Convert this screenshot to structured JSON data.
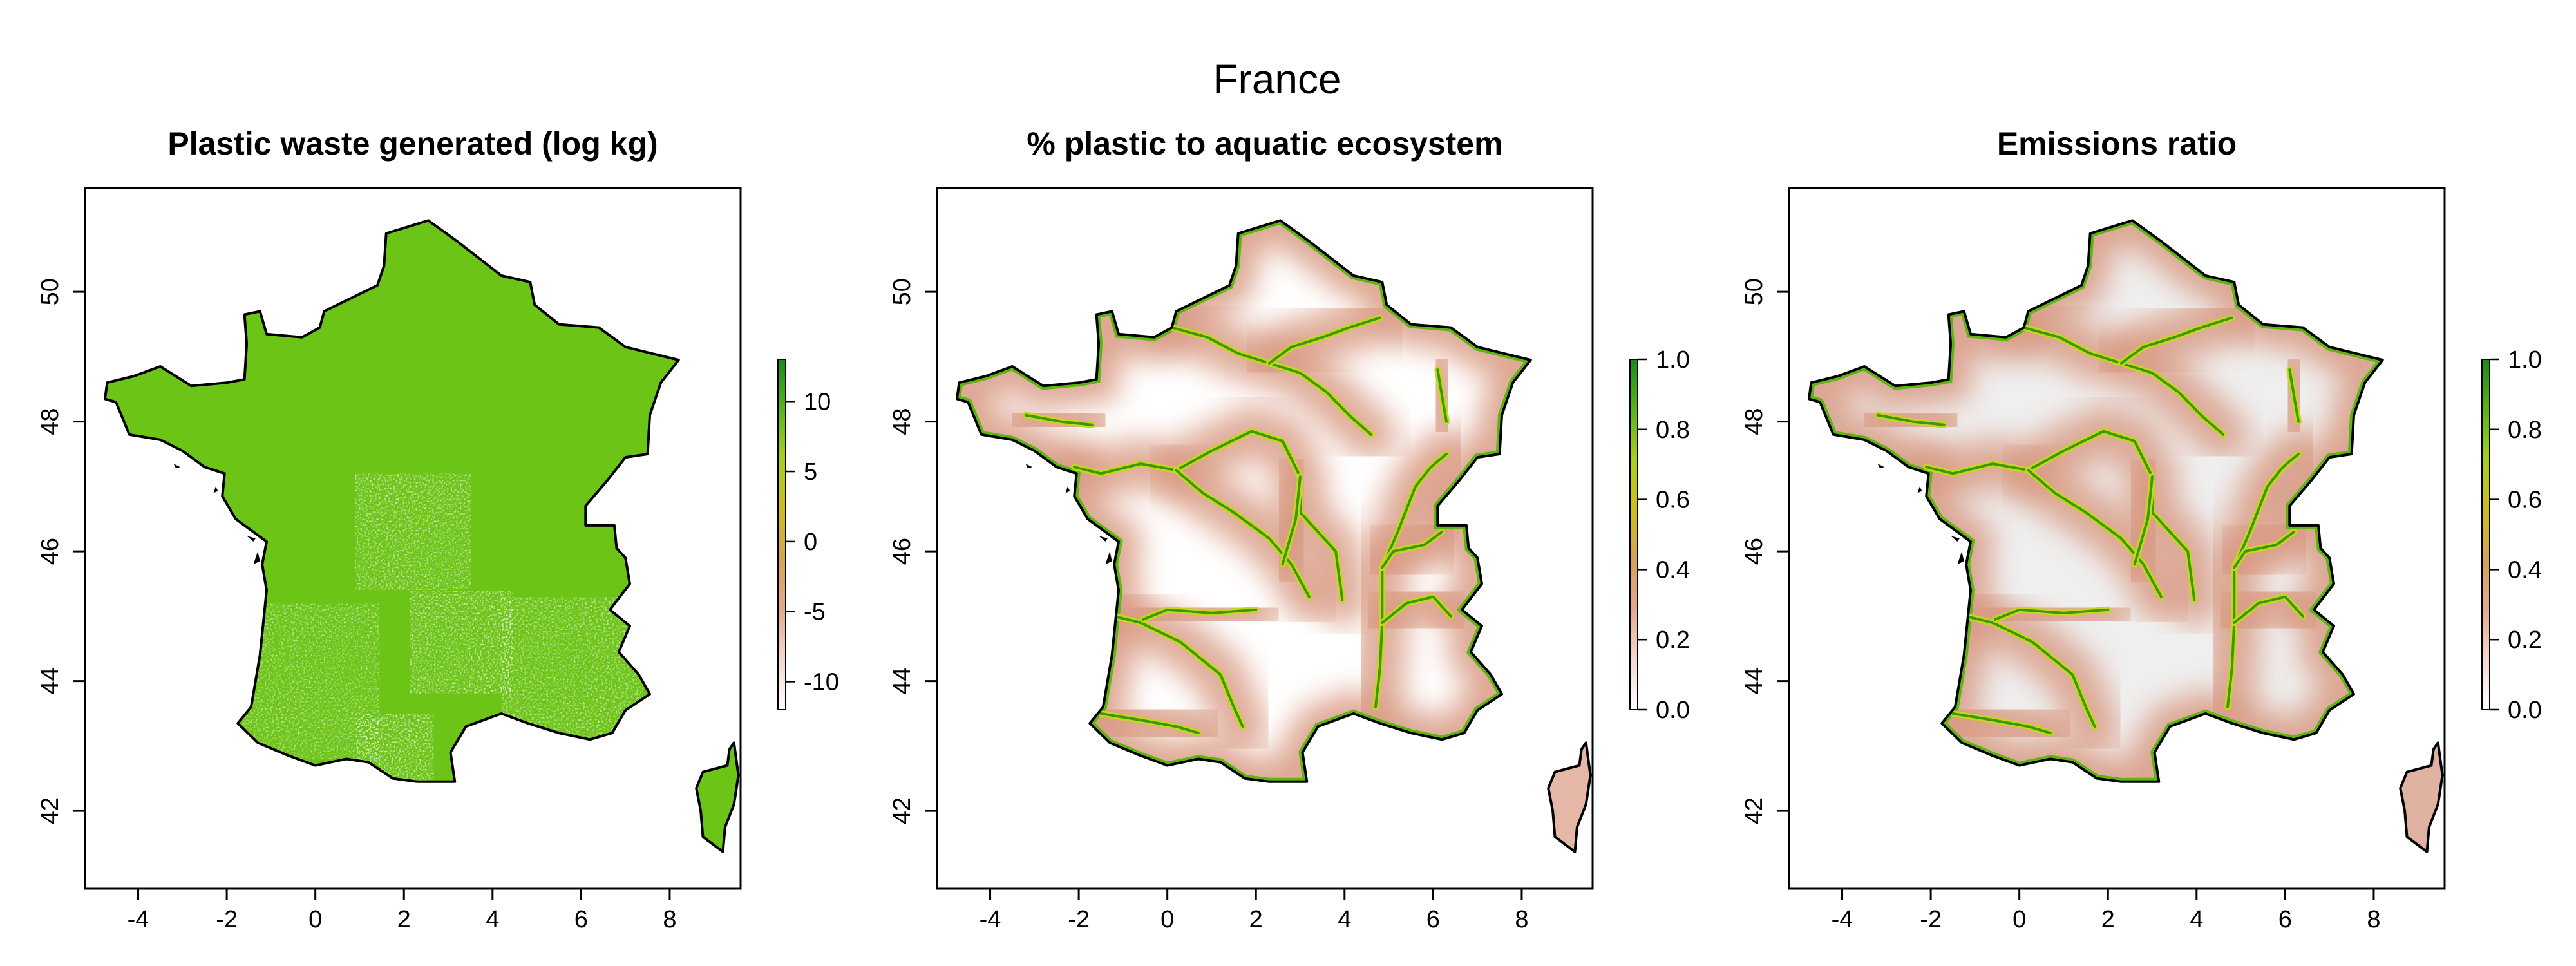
{
  "figure": {
    "title": "France"
  },
  "panels": [
    {
      "id": "waste",
      "title": "Plastic waste generated (log kg)",
      "fill_mode": "waste",
      "legend": {
        "ticks": [
          "10",
          "5",
          "0",
          "-5",
          "-10"
        ],
        "tick_values": [
          10,
          5,
          0,
          -5,
          -10
        ],
        "range": [
          -12,
          13
        ]
      }
    },
    {
      "id": "aquatic",
      "title": "% plastic to aquatic ecosystem",
      "fill_mode": "aquatic",
      "legend": {
        "ticks": [
          "1.0",
          "0.8",
          "0.6",
          "0.4",
          "0.2",
          "0.0"
        ],
        "tick_values": [
          1.0,
          0.8,
          0.6,
          0.4,
          0.2,
          0.0
        ],
        "range": [
          0,
          1
        ]
      }
    },
    {
      "id": "emissions",
      "title": "Emissions ratio",
      "fill_mode": "emissions",
      "legend": {
        "ticks": [
          "1.0",
          "0.8",
          "0.6",
          "0.4",
          "0.2",
          "0.0"
        ],
        "tick_values": [
          1.0,
          0.8,
          0.6,
          0.4,
          0.2,
          0.0
        ],
        "range": [
          0,
          1
        ]
      }
    }
  ],
  "axes": {
    "x_ticks": [
      "-4",
      "-2",
      "0",
      "2",
      "4",
      "6",
      "8"
    ],
    "x_tick_values": [
      -4,
      -2,
      0,
      2,
      4,
      6,
      8
    ],
    "y_ticks": [
      "42",
      "44",
      "46",
      "48",
      "50"
    ],
    "y_tick_values": [
      42,
      44,
      46,
      48,
      50
    ],
    "xlim": [
      -5.2,
      9.6
    ],
    "ylim": [
      40.8,
      51.6
    ]
  },
  "colors": {
    "land_green": "#6cc417",
    "river_green": "#5db512",
    "river_core": "#3a9a0e",
    "halo": "#d89880",
    "grey_fill": "#efefef",
    "outline": "#000000",
    "scale": [
      "#ffffff",
      "#f3d7d0",
      "#e3a98e",
      "#d5a25a",
      "#cdbd1e",
      "#a9cf1f",
      "#58b41a",
      "#1b8a1a"
    ]
  },
  "map": {
    "mainland": [
      [
        -1.6,
        49.65
      ],
      [
        -1.25,
        49.7
      ],
      [
        -1.1,
        49.35
      ],
      [
        -0.3,
        49.3
      ],
      [
        0.1,
        49.45
      ],
      [
        0.2,
        49.7
      ],
      [
        1.4,
        50.1
      ],
      [
        1.55,
        50.4
      ],
      [
        1.6,
        50.9
      ],
      [
        2.55,
        51.1
      ],
      [
        3.2,
        50.78
      ],
      [
        4.2,
        50.25
      ],
      [
        4.85,
        50.15
      ],
      [
        4.95,
        49.8
      ],
      [
        5.5,
        49.5
      ],
      [
        6.4,
        49.45
      ],
      [
        7.0,
        49.15
      ],
      [
        7.6,
        49.05
      ],
      [
        8.2,
        48.95
      ],
      [
        7.8,
        48.6
      ],
      [
        7.55,
        48.1
      ],
      [
        7.5,
        47.5
      ],
      [
        7.0,
        47.45
      ],
      [
        6.6,
        47.1
      ],
      [
        6.1,
        46.7
      ],
      [
        6.1,
        46.4
      ],
      [
        6.75,
        46.4
      ],
      [
        6.8,
        46.05
      ],
      [
        7.0,
        45.9
      ],
      [
        7.1,
        45.5
      ],
      [
        6.65,
        45.1
      ],
      [
        7.1,
        44.85
      ],
      [
        6.85,
        44.45
      ],
      [
        7.3,
        44.1
      ],
      [
        7.55,
        43.8
      ],
      [
        7.0,
        43.55
      ],
      [
        6.7,
        43.2
      ],
      [
        6.2,
        43.1
      ],
      [
        5.5,
        43.2
      ],
      [
        4.8,
        43.35
      ],
      [
        4.2,
        43.5
      ],
      [
        3.4,
        43.3
      ],
      [
        3.05,
        42.9
      ],
      [
        3.15,
        42.45
      ],
      [
        2.3,
        42.45
      ],
      [
        1.75,
        42.5
      ],
      [
        1.2,
        42.75
      ],
      [
        0.7,
        42.8
      ],
      [
        0.0,
        42.7
      ],
      [
        -0.6,
        42.85
      ],
      [
        -1.3,
        43.05
      ],
      [
        -1.75,
        43.35
      ],
      [
        -1.45,
        43.6
      ],
      [
        -1.25,
        44.4
      ],
      [
        -1.1,
        45.4
      ],
      [
        -1.2,
        45.8
      ],
      [
        -1.1,
        46.15
      ],
      [
        -1.8,
        46.5
      ],
      [
        -2.1,
        46.85
      ],
      [
        -2.05,
        47.2
      ],
      [
        -2.5,
        47.3
      ],
      [
        -3.0,
        47.55
      ],
      [
        -3.5,
        47.72
      ],
      [
        -4.2,
        47.8
      ],
      [
        -4.35,
        48.05
      ],
      [
        -4.5,
        48.3
      ],
      [
        -4.75,
        48.35
      ],
      [
        -4.7,
        48.6
      ],
      [
        -4.1,
        48.7
      ],
      [
        -3.5,
        48.85
      ],
      [
        -2.8,
        48.55
      ],
      [
        -2.0,
        48.6
      ],
      [
        -1.6,
        48.65
      ],
      [
        -1.55,
        49.2
      ]
    ],
    "corsica": [
      [
        9.45,
        43.05
      ],
      [
        9.55,
        42.55
      ],
      [
        9.45,
        42.1
      ],
      [
        9.25,
        41.75
      ],
      [
        9.2,
        41.37
      ],
      [
        8.75,
        41.6
      ],
      [
        8.7,
        42.0
      ],
      [
        8.6,
        42.35
      ],
      [
        8.75,
        42.6
      ],
      [
        9.3,
        42.7
      ],
      [
        9.35,
        42.95
      ]
    ],
    "islands": [
      [
        [
          -1.35,
          46.2
        ],
        [
          -1.55,
          46.24
        ],
        [
          -1.4,
          46.15
        ]
      ],
      [
        [
          -1.3,
          46.0
        ],
        [
          -1.4,
          45.8
        ],
        [
          -1.25,
          45.85
        ]
      ],
      [
        [
          -3.2,
          47.35
        ],
        [
          -3.05,
          47.3
        ],
        [
          -3.15,
          47.28
        ]
      ],
      [
        [
          -2.25,
          47.0
        ],
        [
          -2.3,
          46.9
        ],
        [
          -2.2,
          46.93
        ]
      ]
    ],
    "rivers": [
      [
        [
          -2.1,
          47.3
        ],
        [
          -1.5,
          47.2
        ],
        [
          -0.6,
          47.35
        ],
        [
          0.2,
          47.25
        ],
        [
          1.0,
          47.55
        ],
        [
          1.9,
          47.85
        ],
        [
          2.6,
          47.7
        ],
        [
          3.0,
          47.15
        ],
        [
          3.0,
          46.6
        ],
        [
          3.8,
          46.0
        ],
        [
          3.95,
          45.25
        ]
      ],
      [
        [
          0.2,
          47.25
        ],
        [
          0.8,
          46.9
        ],
        [
          1.5,
          46.6
        ],
        [
          2.3,
          46.2
        ],
        [
          2.8,
          45.8
        ],
        [
          3.2,
          45.3
        ]
      ],
      [
        [
          0.1,
          49.45
        ],
        [
          0.9,
          49.3
        ],
        [
          1.6,
          49.05
        ],
        [
          2.3,
          48.9
        ],
        [
          3.0,
          48.75
        ],
        [
          3.6,
          48.45
        ],
        [
          4.1,
          48.1
        ],
        [
          4.6,
          47.8
        ]
      ],
      [
        [
          2.3,
          48.9
        ],
        [
          2.8,
          49.15
        ],
        [
          3.5,
          49.3
        ],
        [
          4.1,
          49.45
        ],
        [
          4.8,
          49.6
        ]
      ],
      [
        [
          -1.2,
          45.0
        ],
        [
          -0.6,
          44.9
        ],
        [
          0.3,
          44.6
        ],
        [
          1.2,
          44.1
        ],
        [
          1.5,
          43.6
        ],
        [
          1.7,
          43.3
        ]
      ],
      [
        [
          -0.55,
          44.95
        ],
        [
          0.0,
          45.1
        ],
        [
          1.0,
          45.05
        ],
        [
          2.0,
          45.1
        ]
      ],
      [
        [
          4.7,
          43.6
        ],
        [
          4.8,
          44.2
        ],
        [
          4.85,
          44.9
        ],
        [
          4.85,
          45.75
        ],
        [
          5.2,
          46.3
        ],
        [
          5.6,
          47.0
        ],
        [
          5.95,
          47.3
        ],
        [
          6.3,
          47.5
        ]
      ],
      [
        [
          4.85,
          45.75
        ],
        [
          5.1,
          46.0
        ],
        [
          5.8,
          46.1
        ],
        [
          6.2,
          46.3
        ]
      ],
      [
        [
          4.85,
          44.9
        ],
        [
          5.4,
          45.2
        ],
        [
          6.0,
          45.3
        ],
        [
          6.4,
          45.0
        ]
      ],
      [
        [
          -1.5,
          43.5
        ],
        [
          -0.6,
          43.4
        ],
        [
          0.2,
          43.3
        ],
        [
          0.7,
          43.2
        ]
      ],
      [
        [
          -3.2,
          48.1
        ],
        [
          -2.4,
          48.0
        ],
        [
          -1.7,
          47.95
        ]
      ],
      [
        [
          3.0,
          47.15
        ],
        [
          2.9,
          46.5
        ],
        [
          2.6,
          45.8
        ]
      ],
      [
        [
          6.1,
          48.8
        ],
        [
          6.2,
          48.4
        ],
        [
          6.3,
          48.0
        ]
      ]
    ]
  }
}
